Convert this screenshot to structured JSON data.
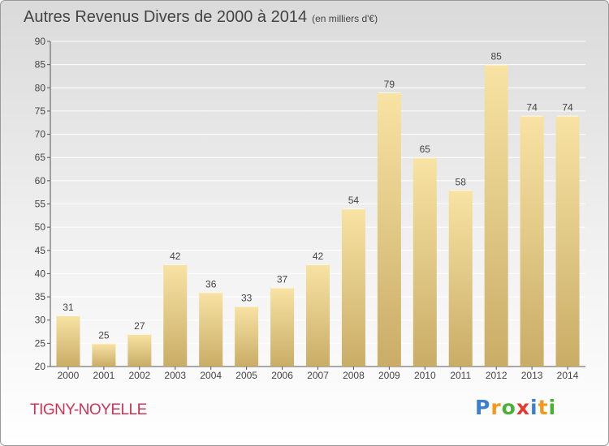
{
  "header": {
    "title": "Autres Revenus Divers de 2000 à 2014",
    "subtitle": "(en milliers d'€)"
  },
  "commune": "TIGNY-NOYELLE",
  "logo": {
    "text": "Proxiti",
    "letters": [
      {
        "ch": "P",
        "color": "#3a7fd0"
      },
      {
        "ch": "r",
        "color": "#f39a1e"
      },
      {
        "ch": "o",
        "color": "#49b03a"
      },
      {
        "ch": "x",
        "color": "#e8382f"
      },
      {
        "ch": "i",
        "color": "#3a7fd0"
      },
      {
        "ch": "t",
        "color": "#f39a1e"
      },
      {
        "ch": "i",
        "color": "#49b03a"
      }
    ]
  },
  "chart_data": {
    "type": "bar",
    "title": "Autres Revenus Divers de 2000 à 2014",
    "subtitle": "(en milliers d'€)",
    "xlabel": "",
    "ylabel": "",
    "categories": [
      "2000",
      "2001",
      "2002",
      "2003",
      "2004",
      "2005",
      "2006",
      "2007",
      "2008",
      "2009",
      "2010",
      "2011",
      "2012",
      "2013",
      "2014"
    ],
    "values": [
      31,
      25,
      27,
      42,
      36,
      33,
      37,
      42,
      54,
      79,
      65,
      58,
      85,
      74,
      74
    ],
    "ylim": [
      20,
      90
    ],
    "yticks": [
      20,
      25,
      30,
      35,
      40,
      45,
      50,
      55,
      60,
      65,
      70,
      75,
      80,
      85,
      90
    ],
    "grid": true,
    "legend": "none",
    "colors": {
      "bar_light": "#f8e3a4",
      "bar_dark": "#c9ad67",
      "grid": "#ffffff",
      "text": "#444444"
    }
  }
}
